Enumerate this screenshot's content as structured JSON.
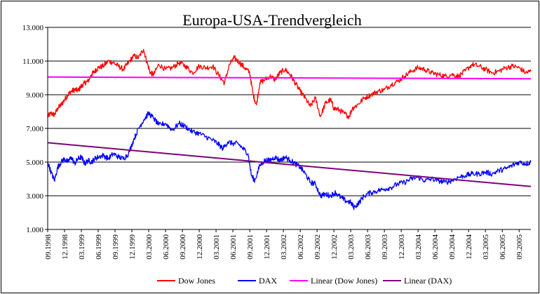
{
  "chart_data": {
    "type": "line",
    "title": "Europa-USA-Trendvergleich",
    "xlabel": "",
    "ylabel": "",
    "ylim": [
      1000,
      13000
    ],
    "y_ticks": [
      {
        "value": 1000,
        "label": "1.000"
      },
      {
        "value": 3000,
        "label": "3.000"
      },
      {
        "value": 5000,
        "label": "5.000"
      },
      {
        "value": 7000,
        "label": "7.000"
      },
      {
        "value": 9000,
        "label": "9.000"
      },
      {
        "value": 11000,
        "label": "11.000"
      },
      {
        "value": 13000,
        "label": "13.000"
      }
    ],
    "x_tick_labels": [
      "09.1998",
      "12.1998",
      "03.1999",
      "06.1999",
      "09.1999",
      "12.1999",
      "03.2000",
      "06.2000",
      "09.2000",
      "12.2000",
      "03.2001",
      "06.2001",
      "09.2001",
      "12.2001",
      "03.2002",
      "06.2002",
      "09.2002",
      "12.2002",
      "03.2003",
      "06.2003",
      "09.2003",
      "12.2003",
      "03.2004",
      "06.2004",
      "09.2004",
      "12.2004",
      "03.2005",
      "06.2005",
      "09.2005"
    ],
    "x_end": 28.7,
    "grid": "horizontal",
    "legend_position": "bottom",
    "series": [
      {
        "name": "Dow Jones",
        "color": "#ff0000",
        "style": "line",
        "points": [
          [
            0,
            7700
          ],
          [
            0.2,
            7900
          ],
          [
            0.4,
            7800
          ],
          [
            0.6,
            8200
          ],
          [
            0.8,
            8400
          ],
          [
            1,
            8700
          ],
          [
            1.2,
            9000
          ],
          [
            1.4,
            9200
          ],
          [
            1.6,
            9300
          ],
          [
            1.8,
            9250
          ],
          [
            2,
            9500
          ],
          [
            2.2,
            9700
          ],
          [
            2.4,
            9800
          ],
          [
            2.6,
            10200
          ],
          [
            2.8,
            10400
          ],
          [
            3,
            10600
          ],
          [
            3.3,
            10700
          ],
          [
            3.6,
            11000
          ],
          [
            3.9,
            10900
          ],
          [
            4.2,
            10700
          ],
          [
            4.5,
            10500
          ],
          [
            4.8,
            10900
          ],
          [
            5.1,
            11300
          ],
          [
            5.4,
            11200
          ],
          [
            5.7,
            11700
          ],
          [
            5.9,
            10900
          ],
          [
            6.1,
            10300
          ],
          [
            6.3,
            10200
          ],
          [
            6.6,
            10800
          ],
          [
            7,
            10500
          ],
          [
            7.4,
            10600
          ],
          [
            7.8,
            10900
          ],
          [
            8.2,
            10700
          ],
          [
            8.6,
            10300
          ],
          [
            9,
            10700
          ],
          [
            9.4,
            10600
          ],
          [
            9.8,
            10700
          ],
          [
            10.2,
            10100
          ],
          [
            10.5,
            9700
          ],
          [
            10.8,
            10800
          ],
          [
            11.1,
            11200
          ],
          [
            11.4,
            10900
          ],
          [
            11.7,
            10600
          ],
          [
            12,
            10300
          ],
          [
            12.2,
            9000
          ],
          [
            12.4,
            8400
          ],
          [
            12.6,
            9700
          ],
          [
            12.9,
            9900
          ],
          [
            13.2,
            10100
          ],
          [
            13.5,
            9900
          ],
          [
            13.8,
            10300
          ],
          [
            14.1,
            10500
          ],
          [
            14.4,
            10200
          ],
          [
            14.7,
            9700
          ],
          [
            15,
            9200
          ],
          [
            15.3,
            8800
          ],
          [
            15.6,
            8300
          ],
          [
            15.9,
            8800
          ],
          [
            16.2,
            7700
          ],
          [
            16.5,
            8500
          ],
          [
            16.8,
            8700
          ],
          [
            17,
            8200
          ],
          [
            17.3,
            8100
          ],
          [
            17.6,
            7900
          ],
          [
            17.9,
            7700
          ],
          [
            18.1,
            8200
          ],
          [
            18.4,
            8400
          ],
          [
            18.8,
            8800
          ],
          [
            19.2,
            9000
          ],
          [
            19.6,
            9200
          ],
          [
            20,
            9300
          ],
          [
            20.4,
            9600
          ],
          [
            20.8,
            9800
          ],
          [
            21.2,
            10100
          ],
          [
            21.6,
            10400
          ],
          [
            22,
            10600
          ],
          [
            22.4,
            10500
          ],
          [
            22.8,
            10300
          ],
          [
            23.2,
            10200
          ],
          [
            23.6,
            10100
          ],
          [
            24,
            10200
          ],
          [
            24.4,
            10100
          ],
          [
            24.8,
            10400
          ],
          [
            25.2,
            10800
          ],
          [
            25.6,
            10700
          ],
          [
            26,
            10500
          ],
          [
            26.4,
            10300
          ],
          [
            26.8,
            10400
          ],
          [
            27.2,
            10600
          ],
          [
            27.6,
            10700
          ],
          [
            28,
            10600
          ],
          [
            28.4,
            10300
          ],
          [
            28.7,
            10400
          ]
        ]
      },
      {
        "name": "DAX",
        "color": "#0000ff",
        "style": "line",
        "points": [
          [
            0,
            5000
          ],
          [
            0.2,
            4400
          ],
          [
            0.4,
            3900
          ],
          [
            0.6,
            4700
          ],
          [
            0.8,
            5000
          ],
          [
            1,
            5200
          ],
          [
            1.2,
            5000
          ],
          [
            1.4,
            5300
          ],
          [
            1.6,
            4900
          ],
          [
            1.8,
            5200
          ],
          [
            2,
            5300
          ],
          [
            2.2,
            4900
          ],
          [
            2.4,
            5100
          ],
          [
            2.6,
            5000
          ],
          [
            2.8,
            5200
          ],
          [
            3,
            5300
          ],
          [
            3.3,
            5400
          ],
          [
            3.6,
            5200
          ],
          [
            3.9,
            5500
          ],
          [
            4.2,
            5300
          ],
          [
            4.5,
            5200
          ],
          [
            4.8,
            5500
          ],
          [
            5.1,
            6300
          ],
          [
            5.4,
            7000
          ],
          [
            5.7,
            7500
          ],
          [
            6,
            7900
          ],
          [
            6.3,
            7600
          ],
          [
            6.6,
            7200
          ],
          [
            7,
            7300
          ],
          [
            7.4,
            6900
          ],
          [
            7.8,
            7300
          ],
          [
            8.2,
            7100
          ],
          [
            8.6,
            6800
          ],
          [
            9,
            6700
          ],
          [
            9.4,
            6500
          ],
          [
            9.8,
            6300
          ],
          [
            10.1,
            6100
          ],
          [
            10.4,
            5800
          ],
          [
            10.7,
            6200
          ],
          [
            11,
            6100
          ],
          [
            11.3,
            6100
          ],
          [
            11.6,
            5800
          ],
          [
            11.9,
            5500
          ],
          [
            12.1,
            4200
          ],
          [
            12.3,
            3900
          ],
          [
            12.6,
            4800
          ],
          [
            12.9,
            5100
          ],
          [
            13.2,
            5100
          ],
          [
            13.5,
            5300
          ],
          [
            13.8,
            5100
          ],
          [
            14.1,
            5300
          ],
          [
            14.4,
            5100
          ],
          [
            14.7,
            4900
          ],
          [
            15,
            4700
          ],
          [
            15.3,
            4300
          ],
          [
            15.6,
            3800
          ],
          [
            15.9,
            3700
          ],
          [
            16.2,
            3000
          ],
          [
            16.5,
            3100
          ],
          [
            16.8,
            3000
          ],
          [
            17.1,
            3200
          ],
          [
            17.4,
            2900
          ],
          [
            17.7,
            2700
          ],
          [
            18,
            2600
          ],
          [
            18.2,
            2300
          ],
          [
            18.5,
            2600
          ],
          [
            18.8,
            3000
          ],
          [
            19.2,
            3200
          ],
          [
            19.6,
            3300
          ],
          [
            20,
            3400
          ],
          [
            20.4,
            3500
          ],
          [
            20.8,
            3700
          ],
          [
            21.2,
            3800
          ],
          [
            21.6,
            4000
          ],
          [
            22,
            4100
          ],
          [
            22.4,
            3900
          ],
          [
            22.8,
            4000
          ],
          [
            23.2,
            3900
          ],
          [
            23.6,
            3800
          ],
          [
            24,
            3900
          ],
          [
            24.4,
            4100
          ],
          [
            24.8,
            4200
          ],
          [
            25.2,
            4300
          ],
          [
            25.6,
            4300
          ],
          [
            26,
            4400
          ],
          [
            26.4,
            4300
          ],
          [
            26.8,
            4500
          ],
          [
            27.2,
            4600
          ],
          [
            27.6,
            4800
          ],
          [
            28,
            5000
          ],
          [
            28.4,
            4900
          ],
          [
            28.7,
            5000
          ]
        ]
      },
      {
        "name": "Linear (Dow Jones)",
        "color": "#ff00ff",
        "style": "trend",
        "points": [
          [
            0,
            10050
          ],
          [
            28.7,
            9950
          ]
        ]
      },
      {
        "name": "Linear (DAX)",
        "color": "#800080",
        "style": "trend",
        "points": [
          [
            0,
            6150
          ],
          [
            28.7,
            3550
          ]
        ]
      }
    ]
  }
}
